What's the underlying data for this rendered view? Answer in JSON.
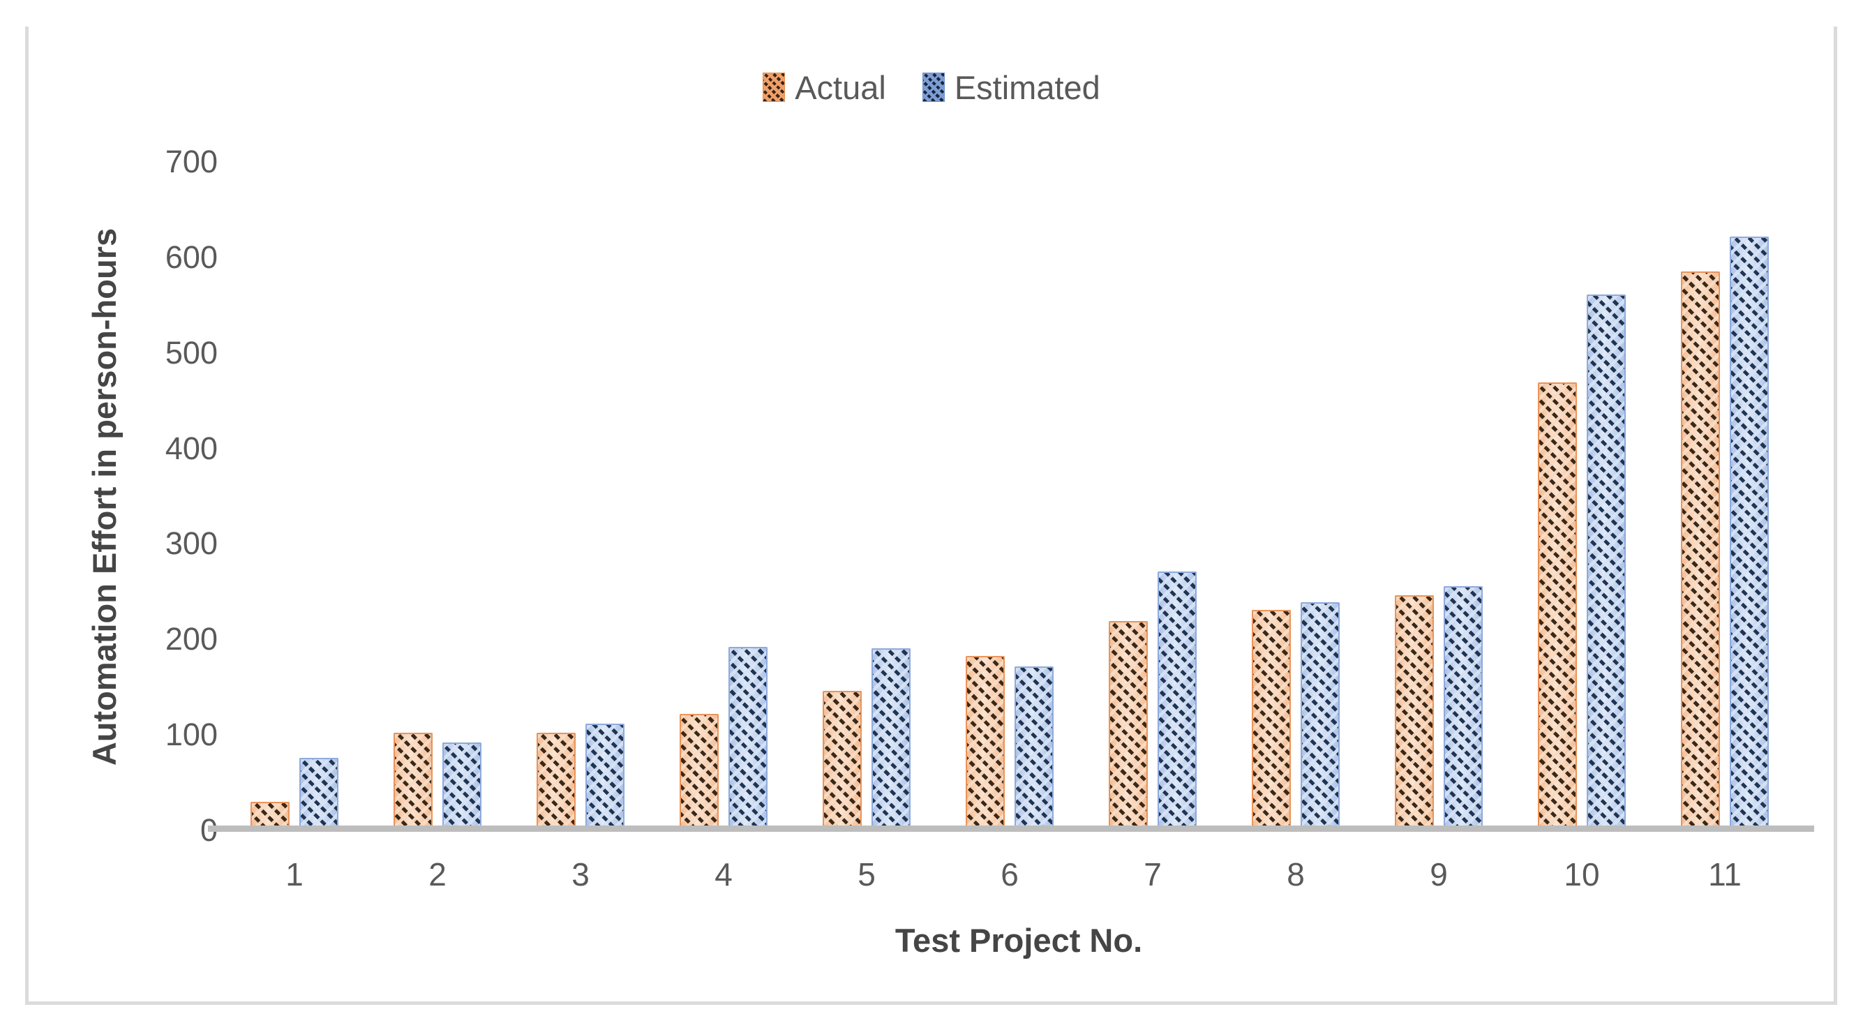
{
  "figure": {
    "background_color": "#FFFFFF",
    "border_color": "#DBDBDB",
    "axis_line_color": "#BDBDBD",
    "text_color": "#595959"
  },
  "chart_data": {
    "type": "bar",
    "title": "",
    "categories": [
      "1",
      "2",
      "3",
      "4",
      "5",
      "6",
      "7",
      "8",
      "9",
      "10",
      "11"
    ],
    "series": [
      {
        "name": "Actual",
        "color": "#ED7D31",
        "pattern": "diagonal-dash-hatch",
        "values": [
          30,
          102,
          102,
          122,
          146,
          183,
          219,
          231,
          246,
          469,
          585
        ]
      },
      {
        "name": "Estimated",
        "color": "#4472C4",
        "pattern": "diagonal-dash-hatch",
        "values": [
          76,
          92,
          112,
          192,
          191,
          172,
          271,
          239,
          256,
          561,
          622
        ]
      }
    ],
    "xlabel": "Test Project No.",
    "ylabel": "Automation Effort in person-hours",
    "ylim": [
      0,
      700
    ],
    "yticks": [
      0,
      100,
      200,
      300,
      400,
      500,
      600,
      700
    ],
    "grid": false,
    "legend_position": "top-center"
  }
}
